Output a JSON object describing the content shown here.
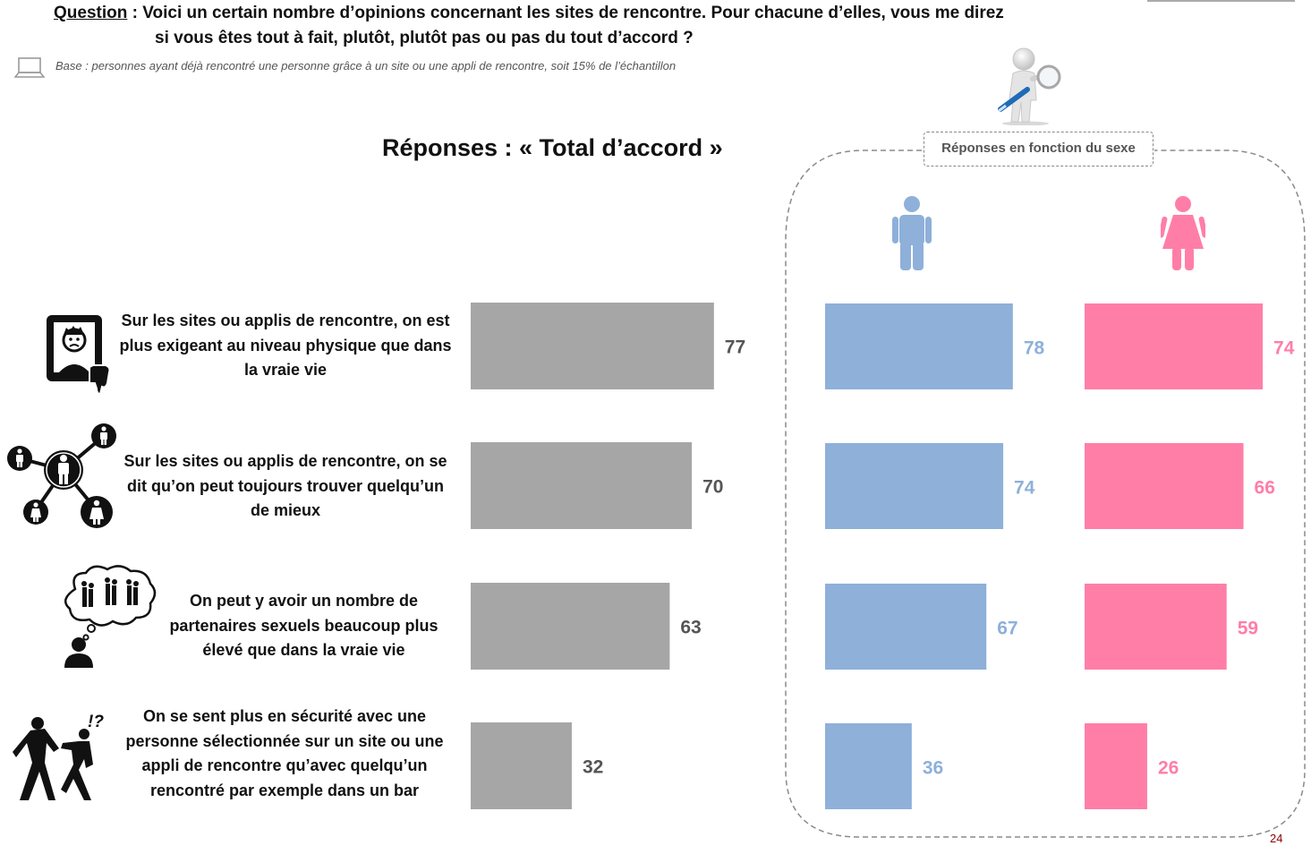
{
  "header": {
    "question_label": "Question",
    "question_line1": " : Voici un certain nombre d’opinions concernant les sites de rencontre. Pour chacune d’elles, vous me direz",
    "question_line2": "si vous êtes tout à fait, plutôt, plutôt pas ou pas du tout d’accord ?",
    "base": "Base : personnes ayant déjà rencontré une personne grâce à un site ou une appli de rencontre, soit 15% de l’échantillon"
  },
  "page_number": "24",
  "colors": {
    "total": "#a6a6a6",
    "men": "#8eb0d9",
    "women": "#ff7ea8"
  },
  "icons": [
    "laptop-icon",
    "magnifier-figure-icon",
    "man-icon",
    "woman-icon",
    "phone-selfie-thumbs-down-icon",
    "network-people-icon",
    "thought-bubble-couples-icon",
    "aggressor-victim-icon"
  ],
  "chart_data": [
    {
      "type": "bar",
      "title": "Réponses : « Total d’accord »",
      "categories": [
        "Sur les sites ou applis de rencontre, on est plus exigeant au niveau physique que dans la vraie vie",
        "Sur les sites ou applis de rencontre, on se dit qu’on peut toujours trouver quelqu’un de mieux",
        "On peut y avoir un nombre de partenaires sexuels beaucoup plus élevé que dans la vraie vie",
        "On se sent plus en sécurité avec une personne sélectionnée sur un site ou une appli de rencontre qu’avec quelqu’un rencontré par exemple dans un bar"
      ],
      "values": [
        77,
        70,
        63,
        32
      ],
      "xlim": [
        0,
        100
      ]
    },
    {
      "type": "bar",
      "title": "Réponses en fonction du sexe",
      "categories": [
        "Sur les sites ou applis de rencontre, on est plus exigeant au niveau physique que dans la vraie vie",
        "Sur les sites ou applis de rencontre, on se dit qu’on peut toujours trouver quelqu’un de mieux",
        "On peut y avoir un nombre de partenaires sexuels beaucoup plus élevé que dans la vraie vie",
        "On se sent plus en sécurité avec une personne sélectionnée sur un site ou une appli de rencontre qu’avec quelqu’un rencontré par exemple dans un bar"
      ],
      "series": [
        {
          "values": [
            78,
            74,
            67,
            36
          ]
        },
        {
          "values": [
            74,
            66,
            59,
            26
          ]
        }
      ],
      "xlim": [
        0,
        100
      ]
    }
  ]
}
